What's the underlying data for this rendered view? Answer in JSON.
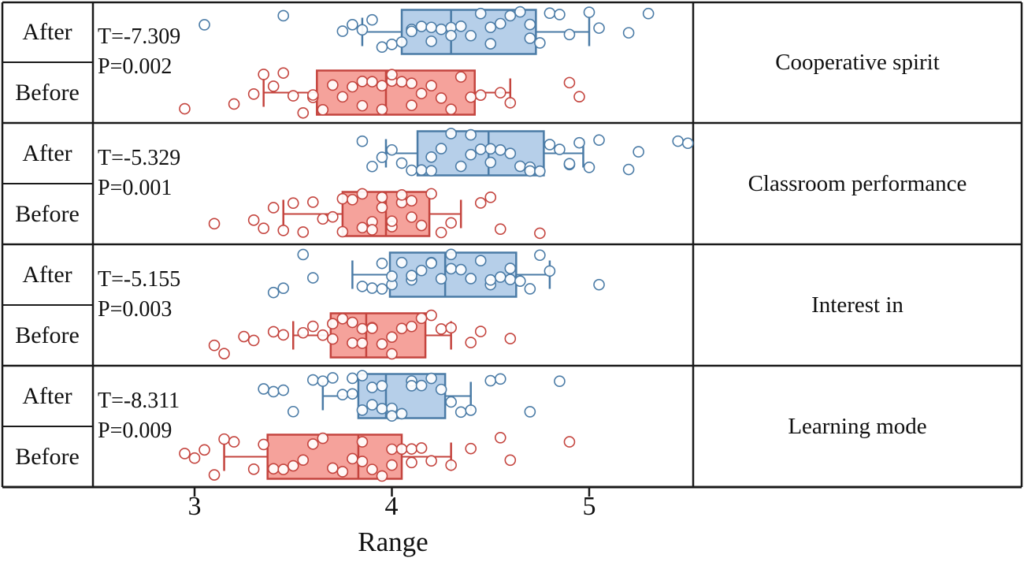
{
  "chart_data": {
    "type": "boxplot",
    "title": "",
    "xlabel": "Range",
    "ylabel": "",
    "x_ticks": [
      "3",
      "4",
      "5"
    ],
    "x_tick_values": [
      3,
      4,
      5
    ],
    "xlim": [
      2.47,
      5.55
    ],
    "grid": false,
    "legend_position": "none",
    "colors": {
      "after": {
        "fill": "#b6cfe9",
        "stroke": "#4a7ba6"
      },
      "before": {
        "fill": "#f5a29b",
        "stroke": "#c4443e"
      }
    },
    "groups": [
      {
        "name": "Cooperative spirit",
        "t_stat": "T=-7.309",
        "p_value": "P=0.002",
        "series": [
          {
            "label": "After",
            "color_key": "after",
            "box": {
              "whisker_low": 3.85,
              "q1": 4.05,
              "median": 4.3,
              "q3": 4.73,
              "whisker_high": 5.0
            },
            "points": [
              3.05,
              3.45,
              3.75,
              3.8,
              3.85,
              3.9,
              3.95,
              4.0,
              4.05,
              4.1,
              4.1,
              4.15,
              4.2,
              4.2,
              4.25,
              4.3,
              4.3,
              4.35,
              4.4,
              4.45,
              4.5,
              4.5,
              4.55,
              4.6,
              4.65,
              4.7,
              4.7,
              4.75,
              4.8,
              4.85,
              4.9,
              5.0,
              5.05,
              5.2,
              5.3
            ]
          },
          {
            "label": "Before",
            "color_key": "before",
            "box": {
              "whisker_low": 3.35,
              "q1": 3.62,
              "median": 3.97,
              "q3": 4.42,
              "whisker_high": 4.6
            },
            "points": [
              2.95,
              3.2,
              3.3,
              3.35,
              3.4,
              3.45,
              3.5,
              3.55,
              3.6,
              3.6,
              3.65,
              3.7,
              3.75,
              3.8,
              3.85,
              3.85,
              3.9,
              3.95,
              3.95,
              4.0,
              4.0,
              4.05,
              4.1,
              4.1,
              4.15,
              4.2,
              4.25,
              4.3,
              4.35,
              4.4,
              4.45,
              4.55,
              4.6,
              4.9,
              4.95
            ]
          }
        ]
      },
      {
        "name": "Classroom performance",
        "t_stat": "T=-5.329",
        "p_value": "P=0.001",
        "series": [
          {
            "label": "After",
            "color_key": "after",
            "box": {
              "whisker_low": 3.97,
              "q1": 4.13,
              "median": 4.49,
              "q3": 4.77,
              "whisker_high": 4.97
            },
            "points": [
              3.85,
              3.9,
              3.95,
              4.0,
              4.05,
              4.1,
              4.15,
              4.2,
              4.2,
              4.25,
              4.3,
              4.35,
              4.4,
              4.4,
              4.45,
              4.5,
              4.5,
              4.55,
              4.6,
              4.65,
              4.7,
              4.7,
              4.75,
              4.8,
              4.85,
              4.9,
              4.9,
              4.95,
              5.0,
              5.05,
              5.2,
              5.25,
              5.45,
              5.5
            ]
          },
          {
            "label": "Before",
            "color_key": "before",
            "box": {
              "whisker_low": 3.45,
              "q1": 3.75,
              "median": 3.97,
              "q3": 4.19,
              "whisker_high": 4.35
            },
            "points": [
              3.1,
              3.3,
              3.35,
              3.4,
              3.45,
              3.5,
              3.55,
              3.6,
              3.65,
              3.7,
              3.75,
              3.75,
              3.8,
              3.85,
              3.85,
              3.9,
              3.9,
              3.95,
              3.95,
              4.0,
              4.0,
              4.05,
              4.05,
              4.1,
              4.1,
              4.15,
              4.2,
              4.25,
              4.3,
              4.45,
              4.5,
              4.55,
              4.75
            ]
          }
        ]
      },
      {
        "name": "Interest in",
        "t_stat": "T=-5.155",
        "p_value": "P=0.003",
        "series": [
          {
            "label": "After",
            "color_key": "after",
            "box": {
              "whisker_low": 3.8,
              "q1": 3.99,
              "median": 4.27,
              "q3": 4.63,
              "whisker_high": 4.8
            },
            "points": [
              3.4,
              3.45,
              3.55,
              3.6,
              3.85,
              3.9,
              3.95,
              3.95,
              4.0,
              4.0,
              4.05,
              4.1,
              4.1,
              4.15,
              4.2,
              4.2,
              4.25,
              4.3,
              4.3,
              4.35,
              4.4,
              4.45,
              4.5,
              4.5,
              4.55,
              4.6,
              4.6,
              4.65,
              4.7,
              4.75,
              4.8,
              5.05
            ]
          },
          {
            "label": "Before",
            "color_key": "before",
            "box": {
              "whisker_low": 3.5,
              "q1": 3.69,
              "median": 3.87,
              "q3": 4.17,
              "whisker_high": 4.3
            },
            "points": [
              3.1,
              3.15,
              3.25,
              3.3,
              3.4,
              3.45,
              3.55,
              3.6,
              3.65,
              3.7,
              3.7,
              3.75,
              3.8,
              3.8,
              3.85,
              3.85,
              3.9,
              3.9,
              3.95,
              4.0,
              4.0,
              4.05,
              4.1,
              4.15,
              4.2,
              4.25,
              4.3,
              4.4,
              4.45,
              4.6
            ]
          }
        ]
      },
      {
        "name": "Learning mode",
        "t_stat": "T=-8.311",
        "p_value": "P=0.009",
        "series": [
          {
            "label": "After",
            "color_key": "after",
            "box": {
              "whisker_low": 3.65,
              "q1": 3.83,
              "median": 3.97,
              "q3": 4.27,
              "whisker_high": 4.4
            },
            "points": [
              3.35,
              3.4,
              3.45,
              3.5,
              3.6,
              3.65,
              3.7,
              3.75,
              3.8,
              3.8,
              3.85,
              3.85,
              3.9,
              3.9,
              3.95,
              3.95,
              4.0,
              4.0,
              4.05,
              4.1,
              4.1,
              4.15,
              4.2,
              4.25,
              4.3,
              4.35,
              4.4,
              4.5,
              4.55,
              4.7,
              4.85
            ]
          },
          {
            "label": "Before",
            "color_key": "before",
            "box": {
              "whisker_low": 3.15,
              "q1": 3.37,
              "median": 3.83,
              "q3": 4.05,
              "whisker_high": 4.3
            },
            "points": [
              2.95,
              3.0,
              3.05,
              3.1,
              3.15,
              3.2,
              3.3,
              3.35,
              3.4,
              3.45,
              3.5,
              3.55,
              3.6,
              3.65,
              3.7,
              3.75,
              3.8,
              3.85,
              3.85,
              3.9,
              3.95,
              4.0,
              4.0,
              4.05,
              4.1,
              4.1,
              4.15,
              4.2,
              4.3,
              4.4,
              4.55,
              4.6,
              4.9
            ]
          }
        ]
      }
    ]
  }
}
